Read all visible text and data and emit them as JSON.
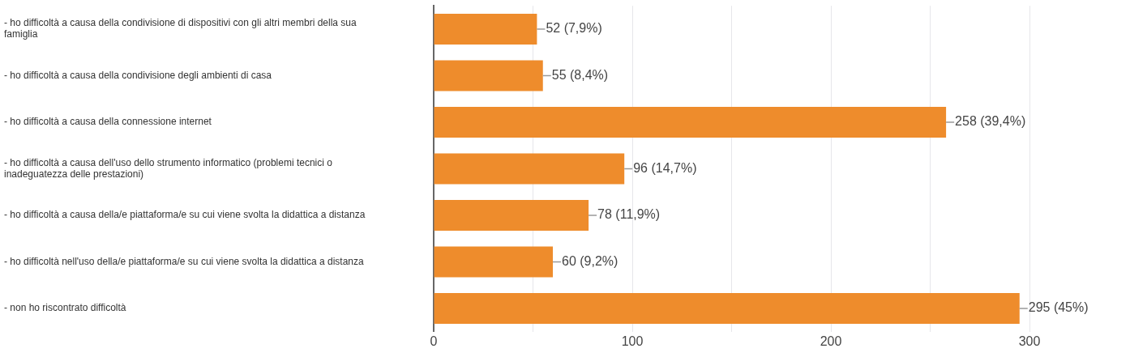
{
  "chart_data": {
    "type": "bar",
    "orientation": "horizontal",
    "categories": [
      "- ho difficoltà a causa della condivisione di dispositivi con gli altri membri della sua famiglia",
      "- ho difficoltà a causa della condivisione degli ambienti di casa",
      "- ho difficoltà a causa della connessione internet",
      "- ho difficoltà a causa dell'uso dello strumento informatico (problemi tecnici o inadeguatezza delle prestazioni)",
      "- ho difficoltà a causa della/e piattaforma/e su cui viene svolta la didattica a distanza",
      "- ho difficoltà nell'uso della/e piattaforma/e su cui viene svolta la didattica a distanza",
      "- non ho riscontrato difficoltà"
    ],
    "values": [
      52,
      55,
      258,
      96,
      78,
      60,
      295
    ],
    "value_labels": [
      "52 (7,9%)",
      "55 (8,4%)",
      "258 (39,4%)",
      "96 (14,7%)",
      "78 (11,9%)",
      "60 (9,2%)",
      "295 (45%)"
    ],
    "color": "#ee8c2c",
    "xlim": [
      0,
      300
    ],
    "xticks": [
      0,
      {
        "value": 50,
        "label": null
      },
      100,
      {
        "value": 150,
        "label": null
      },
      200,
      {
        "value": 250,
        "label": null
      },
      300
    ],
    "grid": "x",
    "legend": false
  }
}
